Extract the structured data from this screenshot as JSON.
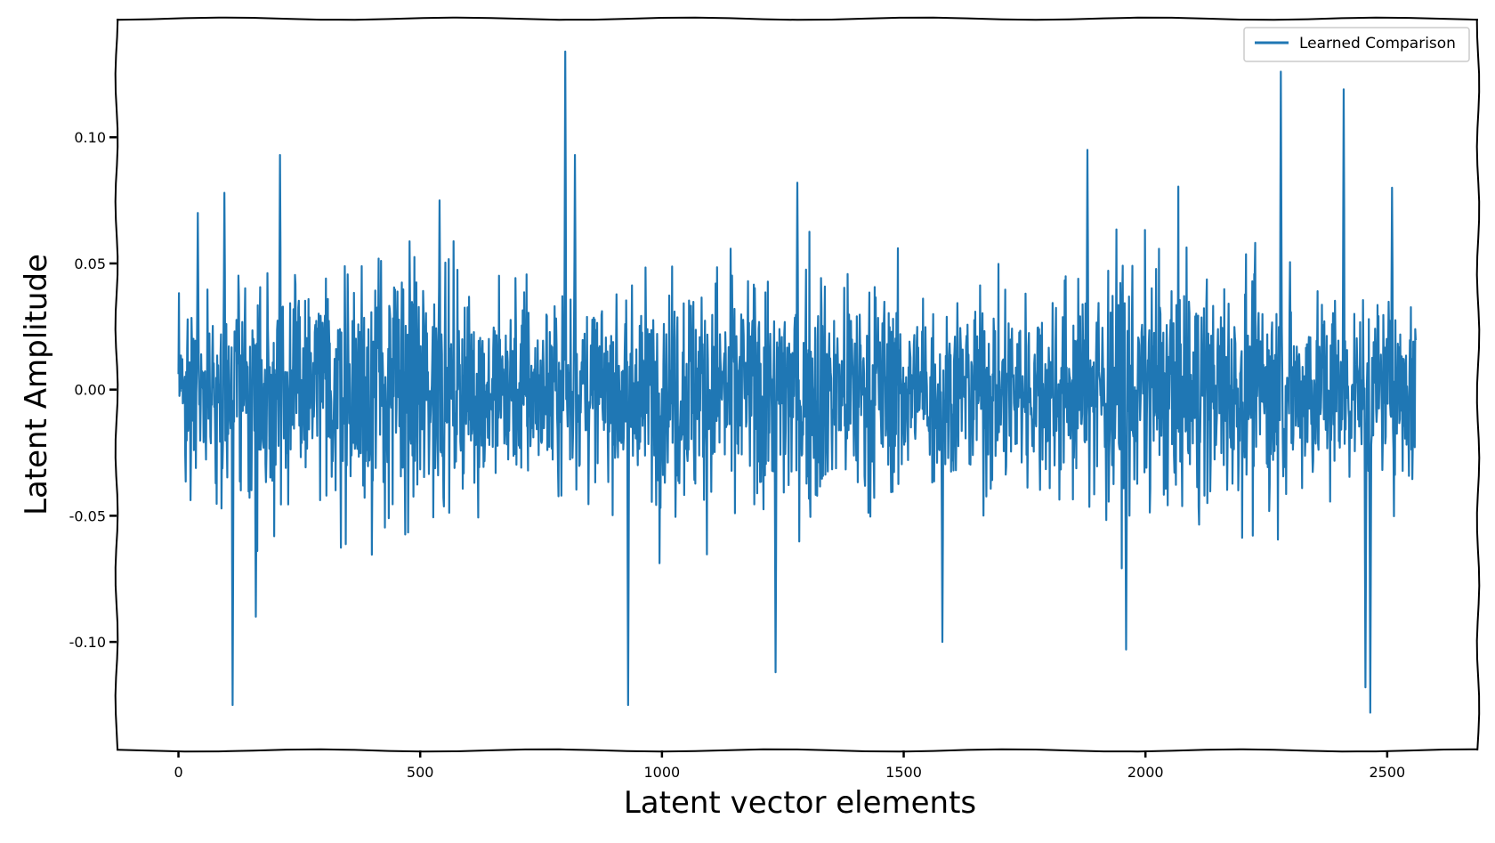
{
  "chart_data": {
    "type": "line",
    "title": "",
    "xlabel": "Latent vector elements",
    "ylabel": "Latent Amplitude",
    "xlim": [
      -128,
      2688
    ],
    "ylim": [
      -0.143,
      0.147
    ],
    "x_ticks": [
      0,
      500,
      1000,
      1500,
      2000,
      2500
    ],
    "x_tick_labels": [
      "0",
      "500",
      "1000",
      "1500",
      "2000",
      "2500"
    ],
    "y_ticks": [
      0.1,
      0.05,
      0.0,
      -0.05,
      -0.1
    ],
    "y_tick_labels": [
      "0.10",
      "0.05",
      "0.00",
      "-0.05",
      "-0.10"
    ],
    "grid": false,
    "legend_position": "top-right",
    "n_points": 2560,
    "series": [
      {
        "name": "Learned Comparison",
        "color": "#1f77b4",
        "x_range": [
          0,
          2559
        ],
        "approx_std": 0.032,
        "peaks": [
          {
            "x": 40,
            "y": 0.07
          },
          {
            "x": 95,
            "y": 0.078
          },
          {
            "x": 112,
            "y": -0.125
          },
          {
            "x": 160,
            "y": -0.09
          },
          {
            "x": 210,
            "y": 0.093
          },
          {
            "x": 540,
            "y": 0.075
          },
          {
            "x": 800,
            "y": 0.134
          },
          {
            "x": 820,
            "y": 0.093
          },
          {
            "x": 930,
            "y": -0.125
          },
          {
            "x": 1280,
            "y": 0.082
          },
          {
            "x": 1235,
            "y": -0.112
          },
          {
            "x": 1580,
            "y": -0.1
          },
          {
            "x": 1880,
            "y": 0.095
          },
          {
            "x": 1960,
            "y": -0.103
          },
          {
            "x": 2280,
            "y": 0.126
          },
          {
            "x": 2410,
            "y": 0.119
          },
          {
            "x": 2455,
            "y": -0.118
          },
          {
            "x": 2465,
            "y": -0.128
          },
          {
            "x": 2510,
            "y": 0.08
          }
        ]
      }
    ]
  }
}
